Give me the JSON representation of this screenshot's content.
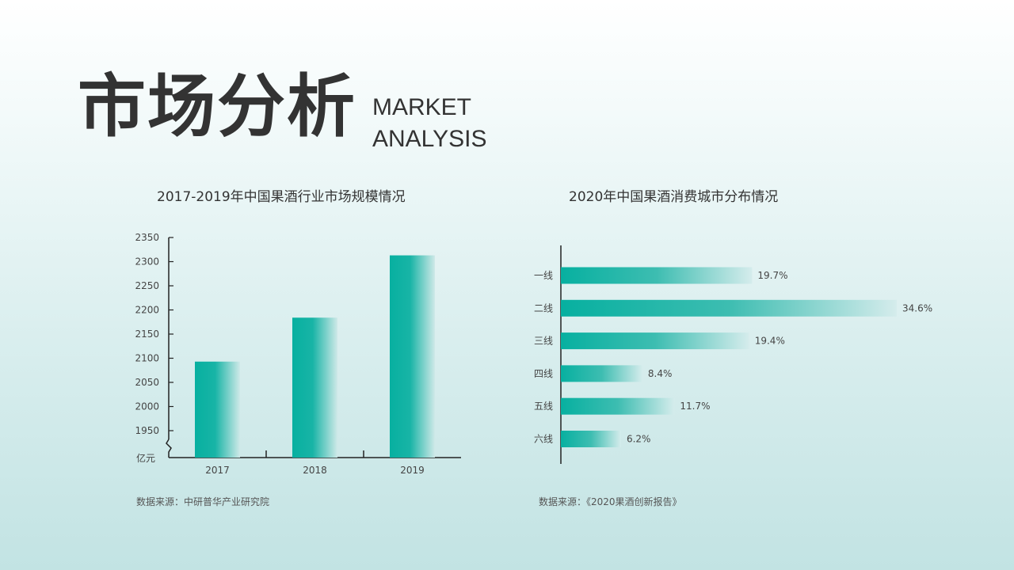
{
  "title": "市场分析",
  "subtitle": [
    "MARKET",
    "ANALYSIS"
  ],
  "colors": {
    "accent": "#0ab0a0",
    "accent_light": "#d4ecec",
    "axis": "#222222"
  },
  "chart_data": [
    {
      "type": "bar",
      "title": "2017-2019年中国果酒行业市场规模情况",
      "categories": [
        "2017",
        "2018",
        "2019"
      ],
      "values": [
        2093,
        2184,
        2313
      ],
      "ylabel": "亿元",
      "ylim": [
        1950,
        2350
      ],
      "yticks": [
        1950,
        2000,
        2050,
        2100,
        2150,
        2200,
        2250,
        2300,
        2350
      ],
      "axis_break": true,
      "source": "数据来源：中研普华产业研究院"
    },
    {
      "type": "bar",
      "orientation": "horizontal",
      "title": "2020年中国果酒消费城市分布情况",
      "categories": [
        "一线",
        "二线",
        "三线",
        "四线",
        "五线",
        "六线"
      ],
      "values": [
        19.7,
        34.6,
        19.4,
        8.4,
        11.7,
        6.2
      ],
      "labels": [
        "19.7%",
        "34.6%",
        "19.4%",
        "8.4%",
        "11.7%",
        "6.2%"
      ],
      "source": "数据来源：《2020果酒创新报告》"
    }
  ]
}
